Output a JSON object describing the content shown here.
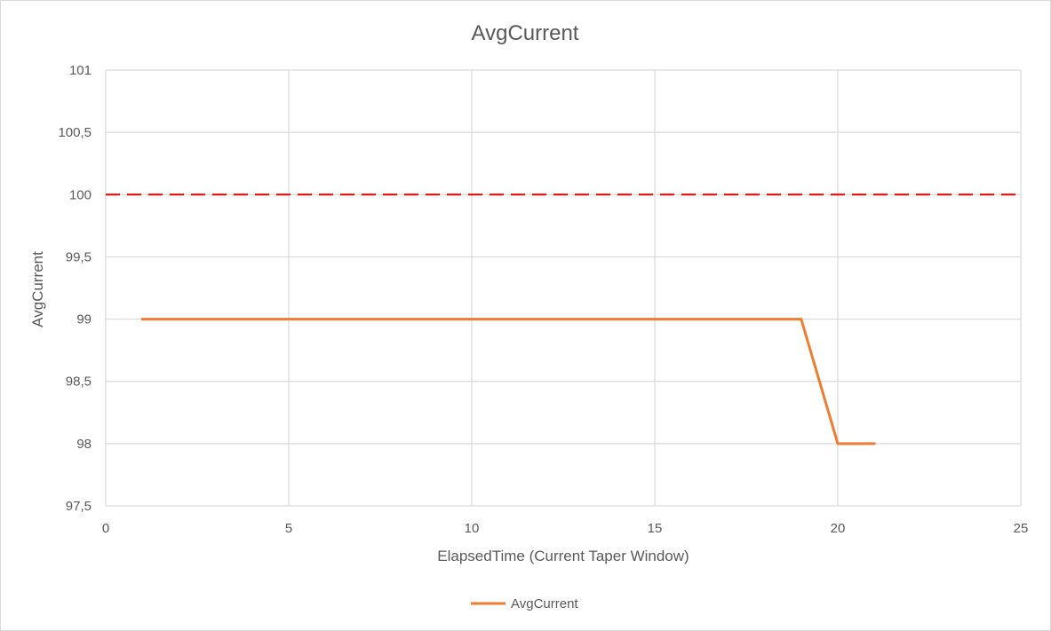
{
  "chart_data": {
    "type": "line",
    "title": "AvgCurrent",
    "xlabel": "ElapsedTime (Current Taper Window)",
    "ylabel": "AvgCurrent",
    "xlim": [
      0,
      25
    ],
    "ylim": [
      97.5,
      101
    ],
    "x_ticks": [
      0,
      5,
      10,
      15,
      20,
      25
    ],
    "y_ticks": [
      97.5,
      98,
      98.5,
      99,
      99.5,
      100,
      100.5,
      101
    ],
    "x_tick_labels": [
      "0",
      "5",
      "10",
      "15",
      "20",
      "25"
    ],
    "y_tick_labels": [
      "97,5",
      "98",
      "98,5",
      "99",
      "99,5",
      "100",
      "100,5",
      "101"
    ],
    "grid": true,
    "legend_position": "bottom",
    "series": [
      {
        "name": "AvgCurrent",
        "color": "#ed7d31",
        "x": [
          1,
          19,
          20,
          21
        ],
        "y": [
          99,
          99,
          98,
          98
        ]
      }
    ],
    "reference_lines": [
      {
        "y": 100,
        "color": "#e00000",
        "style": "dashed"
      }
    ]
  }
}
